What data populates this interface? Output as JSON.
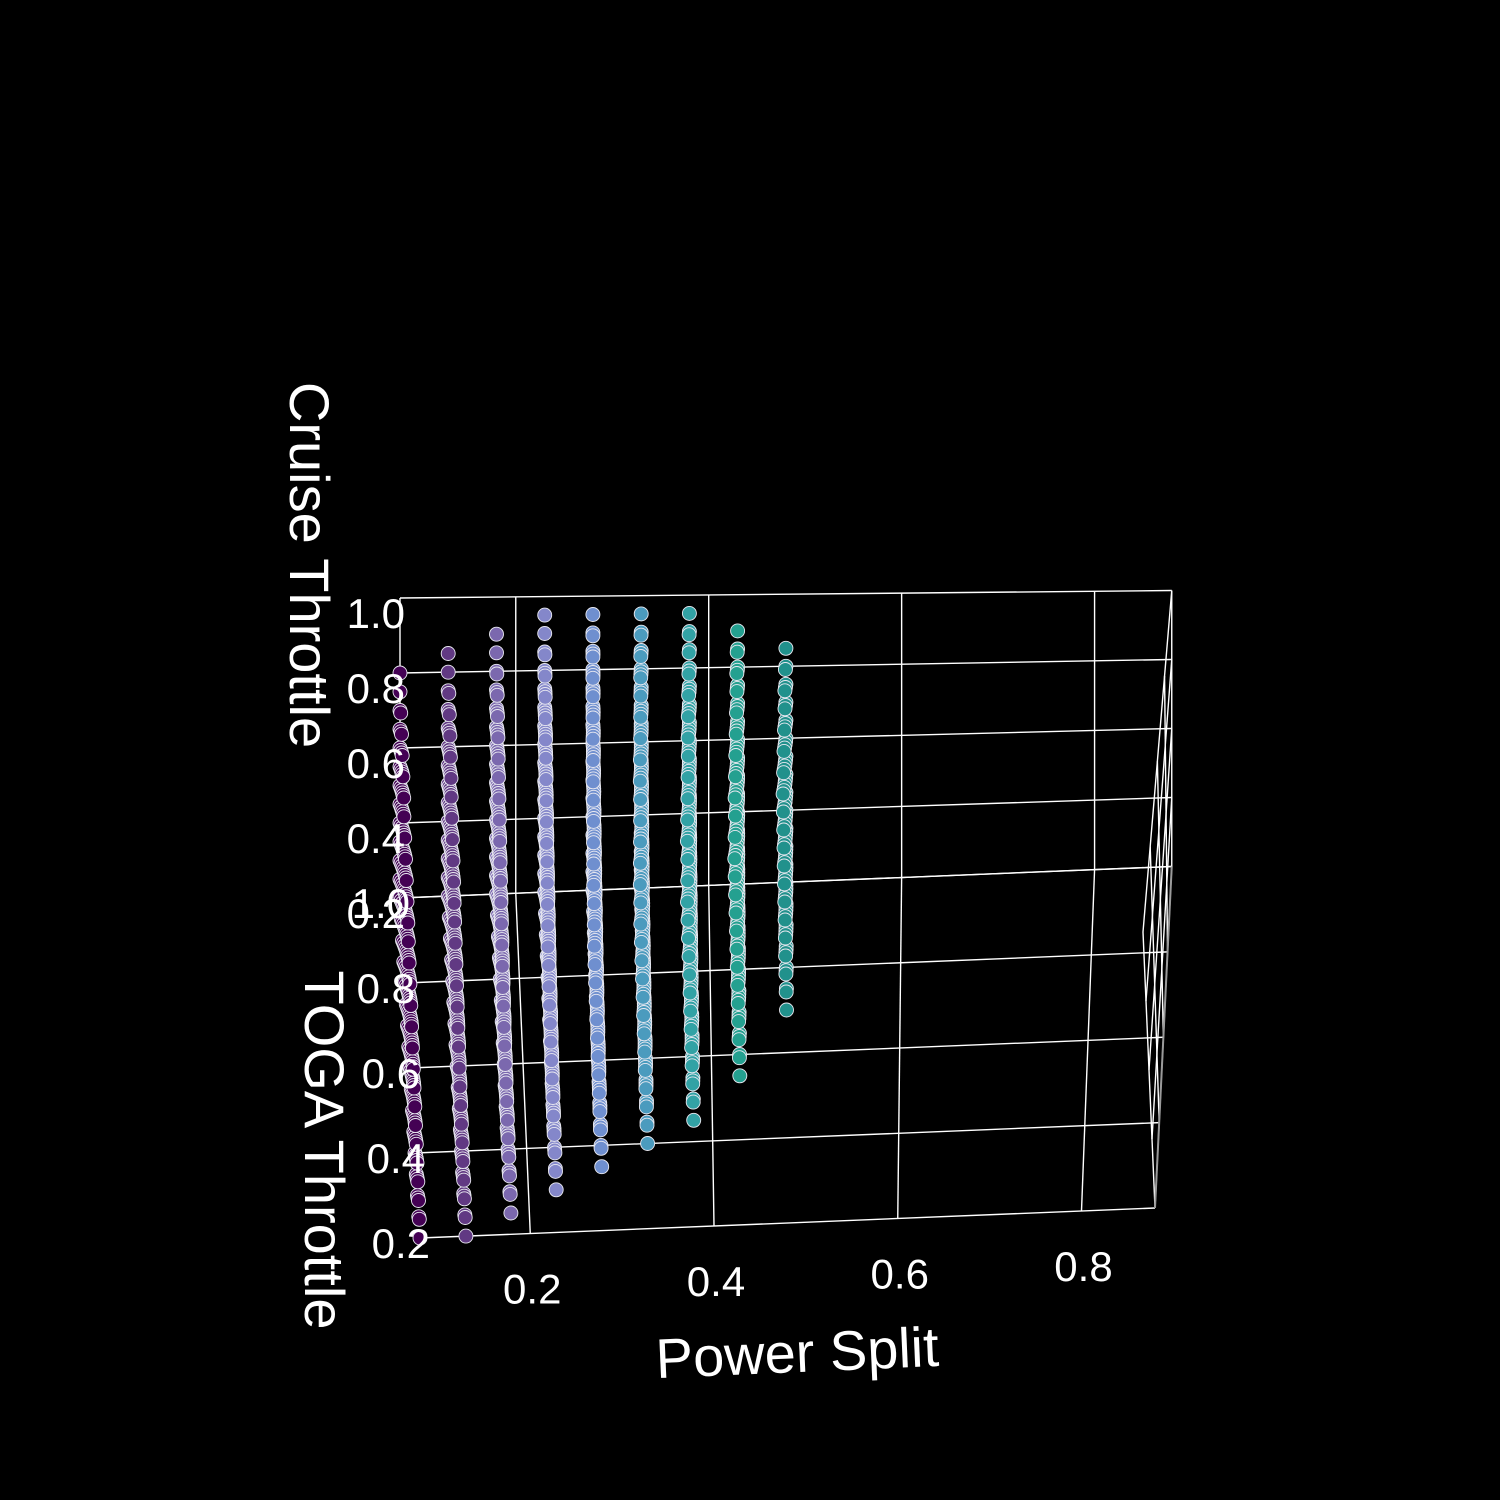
{
  "chart_data": {
    "type": "scatter3d",
    "title": "",
    "xlabel": "Power Split",
    "ylabel": "TOGA Throttle",
    "zlabel": "Cruise Throttle",
    "xlim": [
      0.1,
      0.9
    ],
    "ylim": [
      0.2,
      1.0
    ],
    "zlim": [
      0.2,
      1.0
    ],
    "x_ticks": [
      "0.2",
      "0.4",
      "0.6",
      "0.8"
    ],
    "y_ticks": [
      "0.2",
      "0.4",
      "0.6",
      "0.8",
      "1.0"
    ],
    "z_ticks": [
      "0.2",
      "0.4",
      "0.6",
      "0.8",
      "1.0"
    ],
    "grid": true,
    "background": "#000000",
    "colormap": [
      "#440154",
      "#6a4c93",
      "#8b84c8",
      "#6f8fcf",
      "#3f9fb8",
      "#25a591",
      "#21918c"
    ],
    "color_by": "Power Split",
    "x": [
      0.1,
      0.15,
      0.2,
      0.25,
      0.3,
      0.35,
      0.4,
      0.45,
      0.5
    ],
    "series": [
      {
        "x": 0.1,
        "toga_range": [
          0.2,
          1.0
        ],
        "cruise_max": 0.8
      },
      {
        "x": 0.15,
        "toga_range": [
          0.2,
          1.0
        ],
        "cruise_max": 0.86
      },
      {
        "x": 0.2,
        "toga_range": [
          0.25,
          1.0
        ],
        "cruise_max": 0.91
      },
      {
        "x": 0.25,
        "toga_range": [
          0.3,
          1.0
        ],
        "cruise_max": 0.96
      },
      {
        "x": 0.3,
        "toga_range": [
          0.35,
          1.0
        ],
        "cruise_max": 0.99
      },
      {
        "x": 0.35,
        "toga_range": [
          0.4,
          1.0
        ],
        "cruise_max": 0.99
      },
      {
        "x": 0.4,
        "toga_range": [
          0.45,
          1.0
        ],
        "cruise_max": 0.97
      },
      {
        "x": 0.45,
        "toga_range": [
          0.55,
          1.0
        ],
        "cruise_max": 0.93
      },
      {
        "x": 0.5,
        "toga_range": [
          0.7,
          1.0
        ],
        "cruise_max": 0.88
      }
    ],
    "step": 0.05
  }
}
